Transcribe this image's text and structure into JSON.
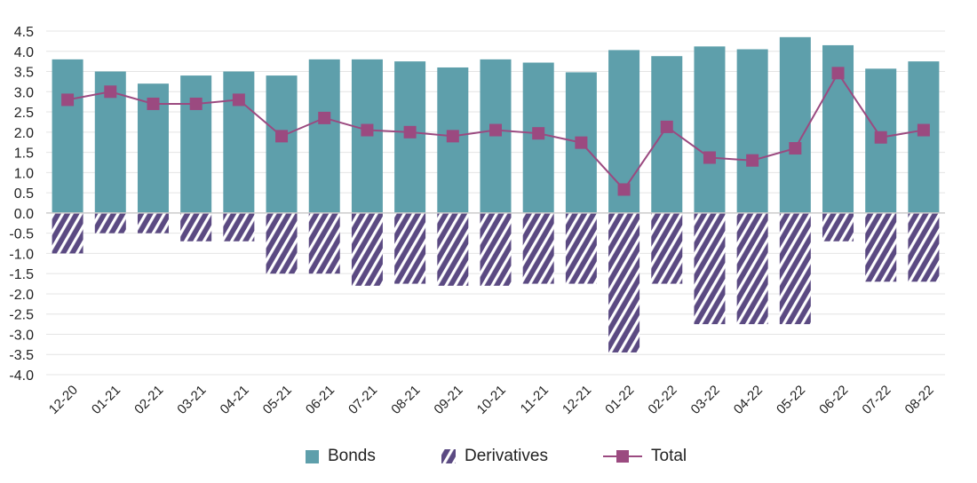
{
  "colors": {
    "bonds": "#5e9fab",
    "derivatives": "#5b4a82",
    "total": "#9b4a80",
    "grid": "#e4e4e4",
    "axis": "#cccccc"
  },
  "legend": {
    "bonds": "Bonds",
    "derivatives": "Derivatives",
    "total": "Total"
  },
  "chart_data": {
    "type": "bar",
    "stacked": true,
    "title": "",
    "xlabel": "",
    "ylabel": "",
    "ylim": [
      -4.0,
      4.5
    ],
    "ytick_step": 0.5,
    "grid": true,
    "legend_position": "bottom",
    "categories": [
      "12-20",
      "01-21",
      "02-21",
      "03-21",
      "04-21",
      "05-21",
      "06-21",
      "07-21",
      "08-21",
      "09-21",
      "10-21",
      "11-21",
      "12-21",
      "01-22",
      "02-22",
      "03-22",
      "04-22",
      "05-22",
      "06-22",
      "07-22",
      "08-22"
    ],
    "series": [
      {
        "name": "Bonds",
        "type": "bar",
        "values": [
          3.8,
          3.5,
          3.2,
          3.4,
          3.5,
          3.4,
          3.8,
          3.8,
          3.75,
          3.6,
          3.8,
          3.72,
          3.48,
          4.03,
          3.88,
          4.12,
          4.05,
          4.35,
          4.15,
          3.57,
          3.75
        ]
      },
      {
        "name": "Derivatives",
        "type": "bar",
        "pattern": "hatched",
        "values": [
          -1.0,
          -0.5,
          -0.5,
          -0.7,
          -0.7,
          -1.5,
          -1.5,
          -1.8,
          -1.75,
          -1.8,
          -1.8,
          -1.75,
          -1.75,
          -3.45,
          -1.75,
          -2.75,
          -2.75,
          -2.75,
          -0.7,
          -1.7,
          -1.7
        ]
      },
      {
        "name": "Total",
        "type": "line",
        "values": [
          2.8,
          3.0,
          2.7,
          2.7,
          2.8,
          1.9,
          2.35,
          2.05,
          2.0,
          1.9,
          2.05,
          1.97,
          1.74,
          0.58,
          2.13,
          1.37,
          1.3,
          1.6,
          3.46,
          1.87,
          2.05
        ]
      }
    ]
  }
}
